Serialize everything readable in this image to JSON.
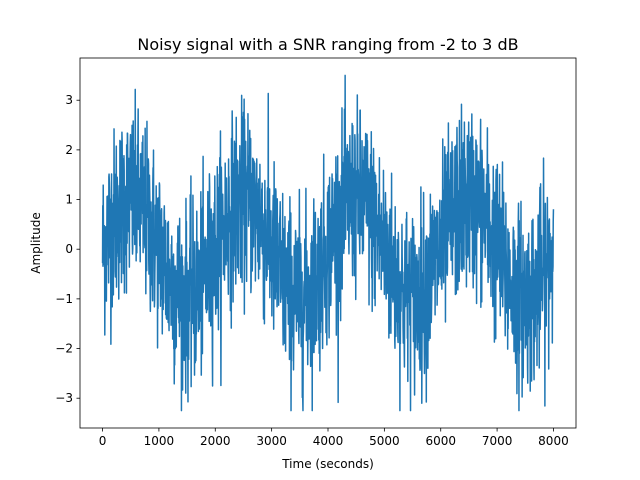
{
  "chart_data": {
    "type": "line",
    "title": "Noisy signal with a SNR ranging from -2 to 3 dB",
    "xlabel": "Time (seconds)",
    "ylabel": "Amplitude",
    "xlim": [
      -400,
      8400
    ],
    "ylim": [
      -3.6,
      3.85
    ],
    "x_ticks": [
      0,
      1000,
      2000,
      3000,
      4000,
      5000,
      6000,
      7000,
      8000
    ],
    "x_tick_labels": [
      "0",
      "1000",
      "2000",
      "3000",
      "4000",
      "5000",
      "6000",
      "7000",
      "8000"
    ],
    "y_ticks": [
      -3,
      -2,
      -1,
      0,
      1,
      2,
      3
    ],
    "y_tick_labels": [
      "−3",
      "−2",
      "−1",
      "0",
      "1",
      "2",
      "3"
    ],
    "grid": false,
    "color": "#1f77b4",
    "series": [
      {
        "x_start": 0,
        "x_end": 8000,
        "underlying_signal": {
          "shape": "sine",
          "amplitude": 1.0,
          "period": 2000,
          "phase_peak_at": 500
        },
        "noise_std": 0.9,
        "observed_max": 3.5,
        "observed_min": -3.25
      }
    ]
  }
}
